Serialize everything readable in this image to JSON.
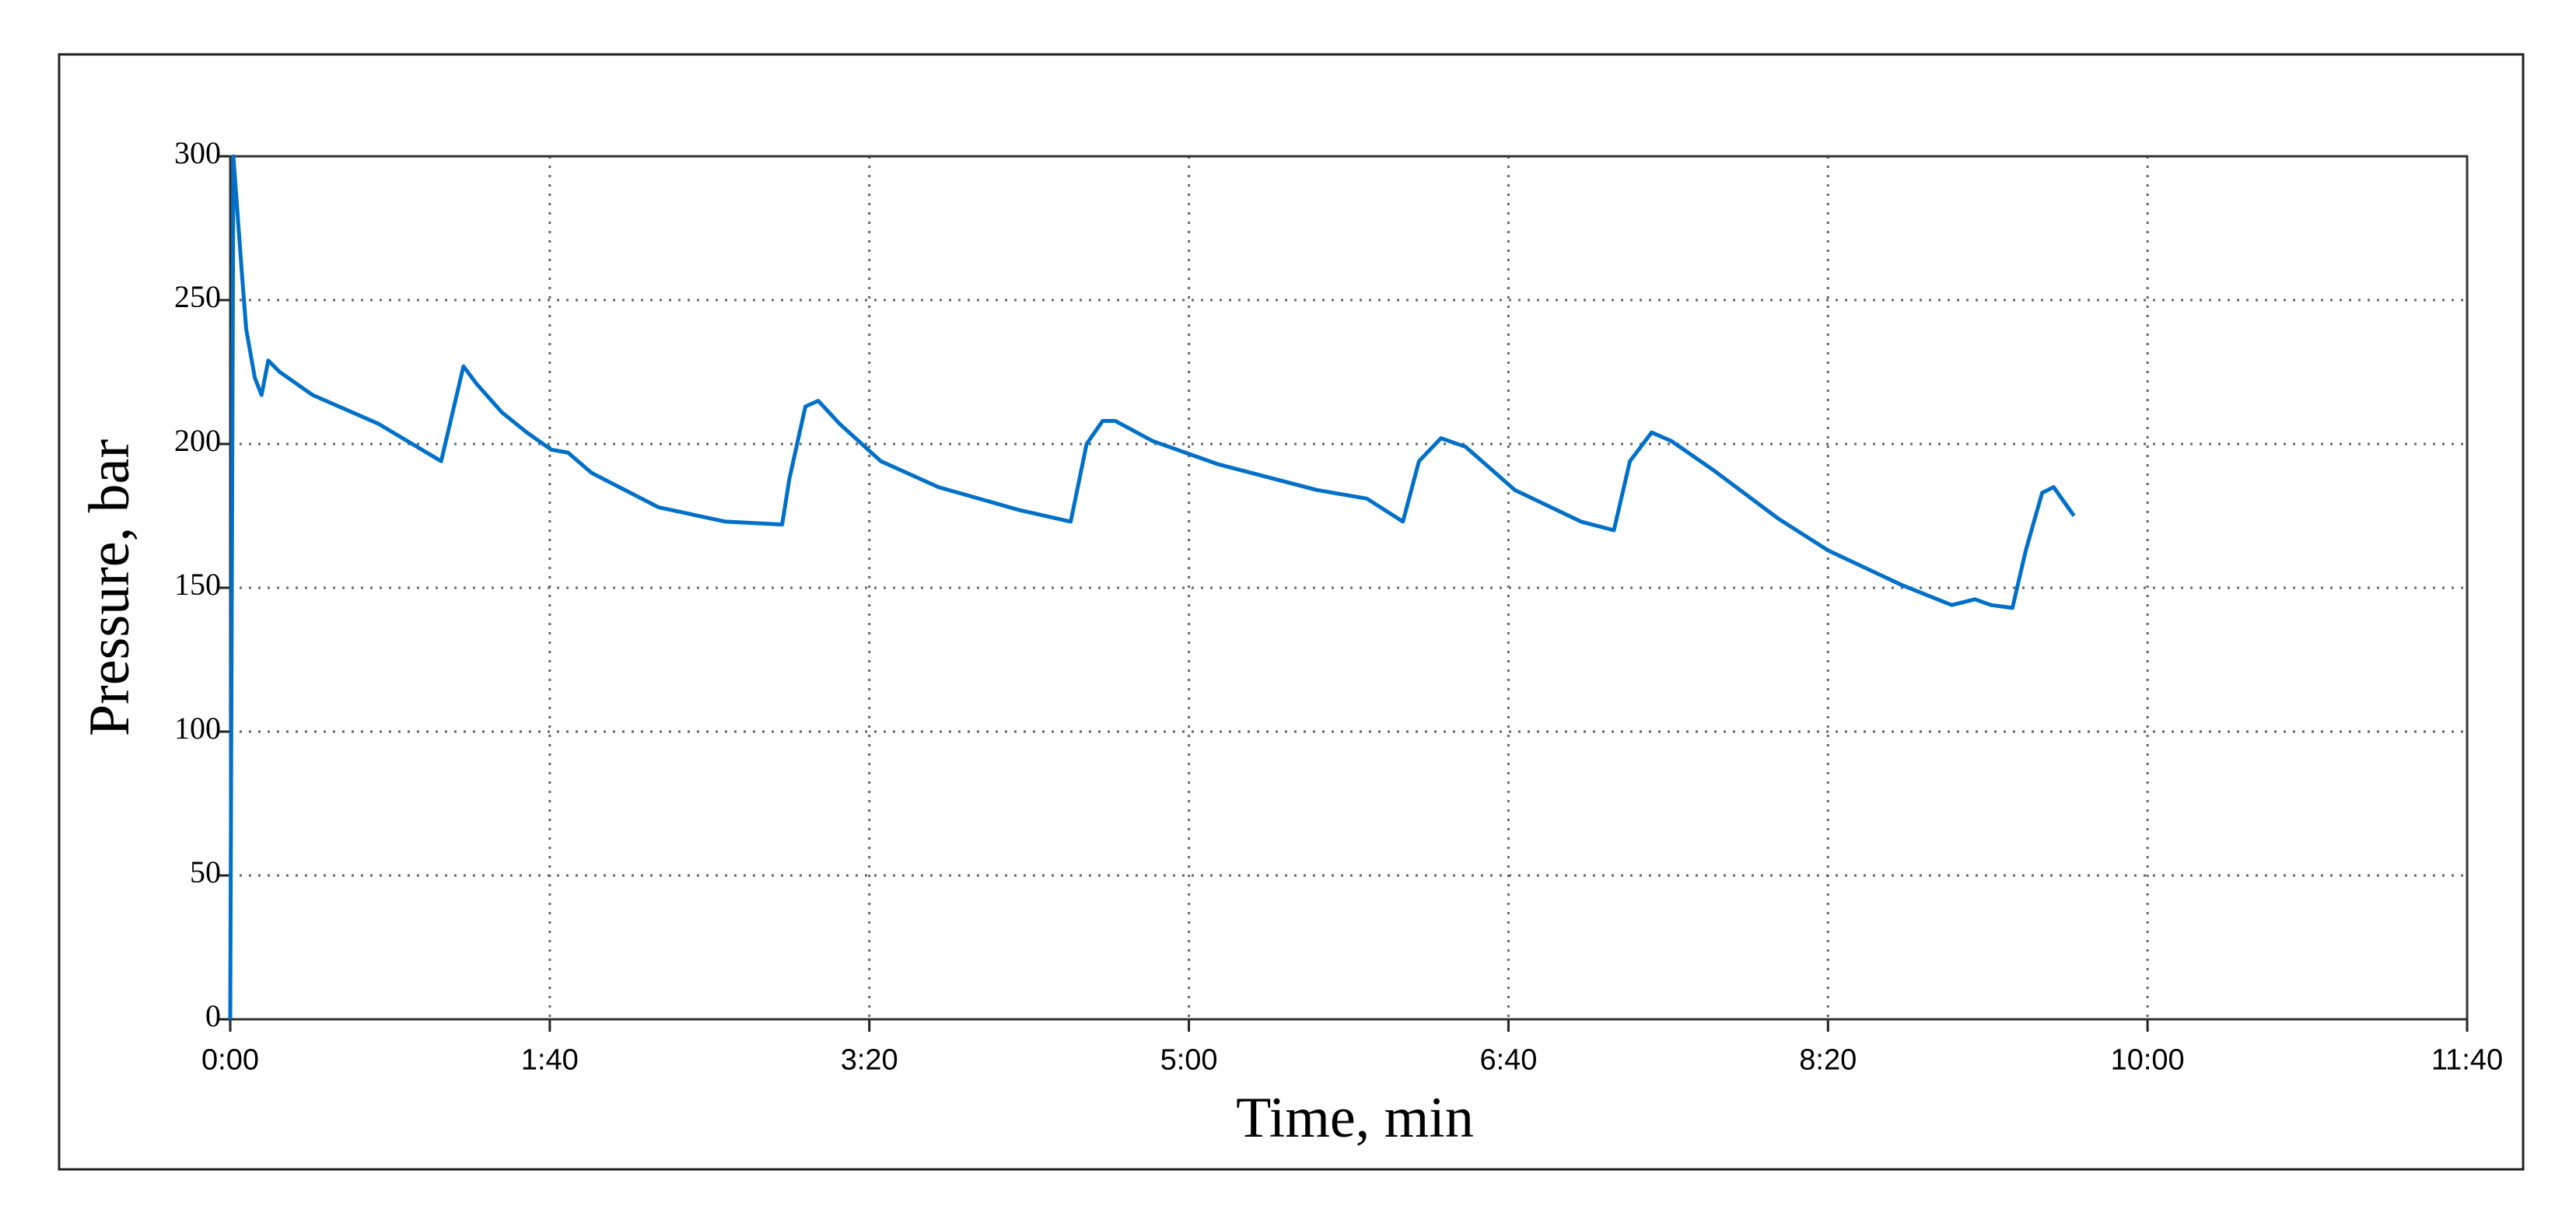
{
  "chart_data": {
    "type": "line",
    "xlabel": "Time, min",
    "ylabel": "Pressure, bar",
    "x": [
      0,
      1,
      3.6,
      5,
      7.7,
      9.8,
      11.9,
      15.5,
      25.8,
      46.4,
      66,
      73,
      77,
      85,
      92.8,
      100.5,
      105.7,
      113,
      134,
      155,
      172.7,
      175,
      180,
      184,
      190.7,
      203.6,
      221.6,
      247,
      263,
      268,
      273,
      277,
      288.7,
      309,
      340,
      355.7,
      367,
      372,
      378.9,
      386.6,
      402,
      422.7,
      433,
      438,
      444.8,
      451,
      464,
      484.5,
      500,
      523,
      538.7,
      546,
      551,
      557.7,
      561.9,
      567,
      570.6,
      577
    ],
    "values": [
      0,
      300,
      260,
      240,
      223,
      217,
      229,
      225,
      217,
      207,
      194,
      227,
      221,
      211,
      204,
      198,
      197,
      190,
      178,
      173,
      172,
      188,
      213,
      215,
      207,
      194,
      185,
      177,
      173,
      200,
      208,
      208,
      201,
      193,
      184,
      181,
      173,
      194,
      202,
      199,
      184,
      173,
      170,
      194,
      204,
      201,
      191,
      174,
      163,
      151,
      144,
      146,
      144,
      143,
      163,
      183,
      185,
      175
    ],
    "color": "#0070c8",
    "xlim": [
      0,
      700
    ],
    "ylim": [
      0,
      300
    ],
    "xticks": [
      {
        "value": 0,
        "label": "0:00"
      },
      {
        "value": 100,
        "label": "1:40"
      },
      {
        "value": 200,
        "label": "3:20"
      },
      {
        "value": 300,
        "label": "5:00"
      },
      {
        "value": 400,
        "label": "6:40"
      },
      {
        "value": 500,
        "label": "8:20"
      },
      {
        "value": 600,
        "label": "10:00"
      },
      {
        "value": 700,
        "label": "11:40"
      }
    ],
    "yticks": [
      0,
      50,
      100,
      150,
      200,
      250,
      300
    ],
    "grid": true
  }
}
